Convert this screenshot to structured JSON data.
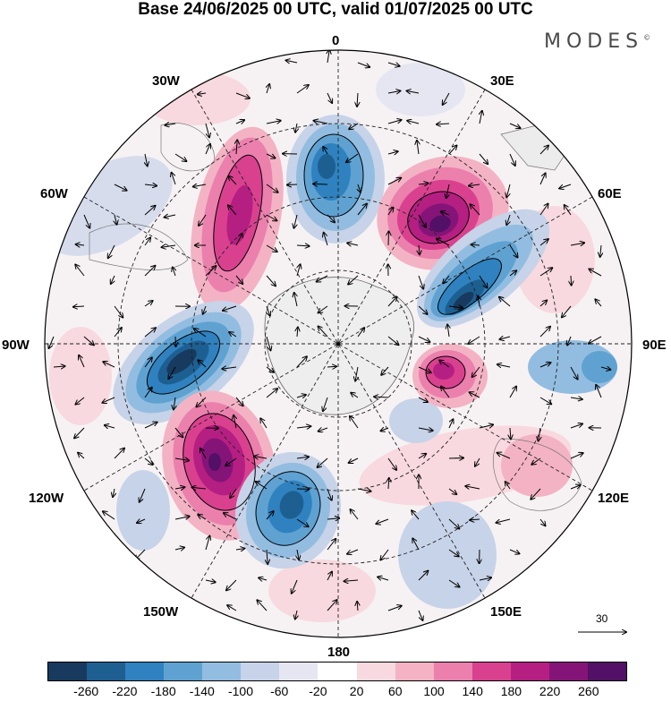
{
  "title": "Base 24/06/2025 00 UTC, valid 01/07/2025 00 UTC",
  "brand": "MODES",
  "brand_mark": "©",
  "longitude_labels": {
    "lon_0": "0",
    "lon_30e": "30E",
    "lon_60e": "60E",
    "lon_90e": "90E",
    "lon_120e": "120E",
    "lon_150e": "150E",
    "lon_180": "180",
    "lon_150w": "150W",
    "lon_120w": "120W",
    "lon_90w": "90W",
    "lon_60w": "60W",
    "lon_30w": "30W"
  },
  "reference_vector_label": "30",
  "colorbar": {
    "colors": [
      "#173a5e",
      "#1e5f92",
      "#2f82bf",
      "#5fa2d2",
      "#93bde0",
      "#c7d3e8",
      "#e6e6f2",
      "#ffffff",
      "#f8d9df",
      "#f3b3c4",
      "#eb80ad",
      "#d9418f",
      "#b51f82",
      "#851478",
      "#521066"
    ],
    "tick_labels": [
      "-260",
      "-220",
      "-180",
      "-140",
      "-100",
      "-60",
      "-20",
      "20",
      "60",
      "100",
      "140",
      "180",
      "220",
      "260"
    ]
  },
  "anomaly_centers": [
    {
      "kind": "negative",
      "at_longitude": "0",
      "strength": "-220"
    },
    {
      "kind": "positive",
      "at_longitude": "30W",
      "strength": "220"
    },
    {
      "kind": "positive",
      "at_longitude": "30E",
      "strength": "260"
    },
    {
      "kind": "negative",
      "at_longitude": "60E",
      "strength": "-260"
    },
    {
      "kind": "positive",
      "at_longitude": "90E",
      "strength": "220"
    },
    {
      "kind": "negative",
      "at_longitude": "90W",
      "strength": "-260"
    },
    {
      "kind": "positive",
      "at_longitude": "120W",
      "strength": "260"
    },
    {
      "kind": "negative",
      "at_longitude": "150W",
      "strength": "-220"
    },
    {
      "kind": "positive",
      "at_longitude": "120E",
      "strength": "100"
    },
    {
      "kind": "negative",
      "at_longitude": "150E",
      "strength": "-100"
    }
  ]
}
